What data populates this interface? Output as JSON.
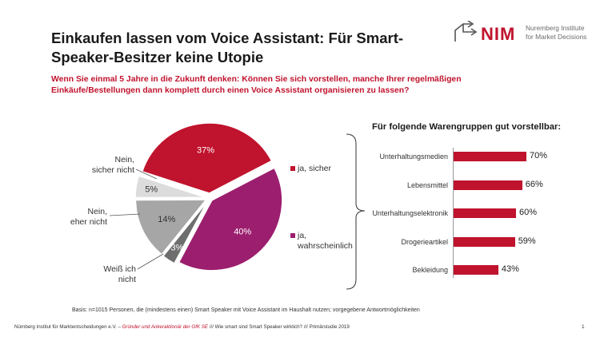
{
  "title": "Einkaufen lassen vom Voice Assistant: Für Smart-Speaker-Besitzer keine Utopie",
  "question": "Wenn Sie einmal 5 Jahre in die Zukunft denken: Können Sie sich vorstellen, manche Ihrer regelmäßigen Einkäufe/Bestellungen dann komplett durch einen Voice Assistant organisieren zu lassen?",
  "logo": {
    "text": "NIM",
    "subtitle_line1": "Nuremberg Institute",
    "subtitle_line2": "for Market Decisions"
  },
  "pie_labels": {
    "nein_sicher": "Nein,\nsicher nicht",
    "nein_eher": "Nein,\neher nicht",
    "weiss": "Weiß ich\nnicht"
  },
  "legend": {
    "ja_sicher": "ja, sicher",
    "ja_wahrscheinlich": "ja,\nwahrscheinlich"
  },
  "bars_title": "Für folgende Warengruppen gut vorstellbar:",
  "basis": "Basis: n=1015 Personen, die (mindestens einen) Smart Speaker mit Voice Assistant im Haushalt nutzen; vorgegebene Antwortmöglichkeiten",
  "footer": {
    "left": "Nürnberg Institut für Marktentscheidungen e.V. – ",
    "red": "Gründer und Ankeraktionär der GfK SE",
    "sep1": "  ///  ",
    "mid": "Wie smart sind Smart Speaker wirklich?",
    "sep2": "  ///  ",
    "right": "Primärstudie 2019"
  },
  "page_number": "1",
  "colors": {
    "red": "#c0132d",
    "purple": "#9c1e6e",
    "dark_grey": "#6e6e6e",
    "mid_grey": "#a6a6a6",
    "light_grey": "#dcdcdc"
  },
  "chart_data": [
    {
      "type": "pie",
      "slices": [
        {
          "label": "ja, sicher",
          "value": 37,
          "display": "37%",
          "color": "#c0132d"
        },
        {
          "label": "ja, wahrscheinlich",
          "value": 40,
          "display": "40%",
          "color": "#9c1e6e"
        },
        {
          "label": "Weiß ich nicht",
          "value": 3,
          "display": "3%",
          "color": "#6e6e6e"
        },
        {
          "label": "Nein, eher nicht",
          "value": 14,
          "display": "14%",
          "color": "#a6a6a6"
        },
        {
          "label": "Nein, sicher nicht",
          "value": 5,
          "display": "5%",
          "color": "#dcdcdc"
        }
      ]
    },
    {
      "type": "bar",
      "orientation": "horizontal",
      "title": "Für folgende Warengruppen gut vorstellbar:",
      "categories": [
        "Unterhaltungsmedien",
        "Lebensmittel",
        "Unterhaltungselektronik",
        "Drogerieartikel",
        "Bekleidung"
      ],
      "values": [
        70,
        66,
        60,
        59,
        43
      ],
      "display": [
        "70%",
        "66%",
        "60%",
        "59%",
        "43%"
      ],
      "xlim": [
        0,
        100
      ],
      "color": "#c0132d"
    }
  ]
}
